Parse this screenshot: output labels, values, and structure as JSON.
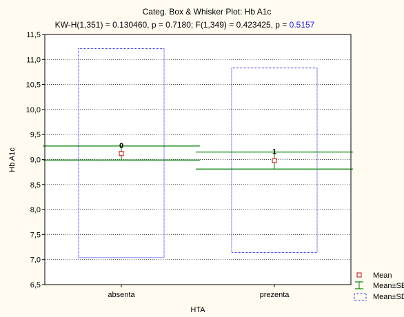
{
  "chart_data": {
    "type": "box",
    "title": "Categ. Box & Whisker Plot:  Hb A1c",
    "subtitle_prefix": "KW-H(1,351) = 0.130460, p = 0.7180;  F(1,349) = 0.423425, p = ",
    "subtitle_pvalue": "0.5157",
    "xlabel": "HTA",
    "ylabel": "Hb A1c",
    "ylim": [
      6.5,
      11.5
    ],
    "yticks": [
      6.5,
      7.0,
      7.5,
      8.0,
      8.5,
      9.0,
      9.5,
      10.0,
      10.5,
      11.0,
      11.5
    ],
    "ytick_labels": [
      "6,5",
      "7,0",
      "7,5",
      "8,0",
      "8,5",
      "9,0",
      "9,5",
      "10,0",
      "10,5",
      "11,0",
      "11,5"
    ],
    "grid": true,
    "categories": [
      "absenta",
      "prezenta"
    ],
    "groups": [
      {
        "label": "0",
        "mean": 9.12,
        "se_low": 8.99,
        "se_high": 9.27,
        "sd_low": 7.04,
        "sd_high": 11.22
      },
      {
        "label": "1",
        "mean": 8.98,
        "se_low": 8.81,
        "se_high": 9.15,
        "sd_low": 7.14,
        "sd_high": 10.83
      }
    ],
    "legend": {
      "position": "bottom-right",
      "items": [
        "Mean",
        "Mean±SE",
        "Mean±SD"
      ]
    },
    "colors": {
      "mean_marker": "#cc0000",
      "se_lines": "#008000",
      "sd_box": "#1a1ae6",
      "plot_bg": "#ffffff",
      "page_bg": "#fffbf0"
    }
  }
}
